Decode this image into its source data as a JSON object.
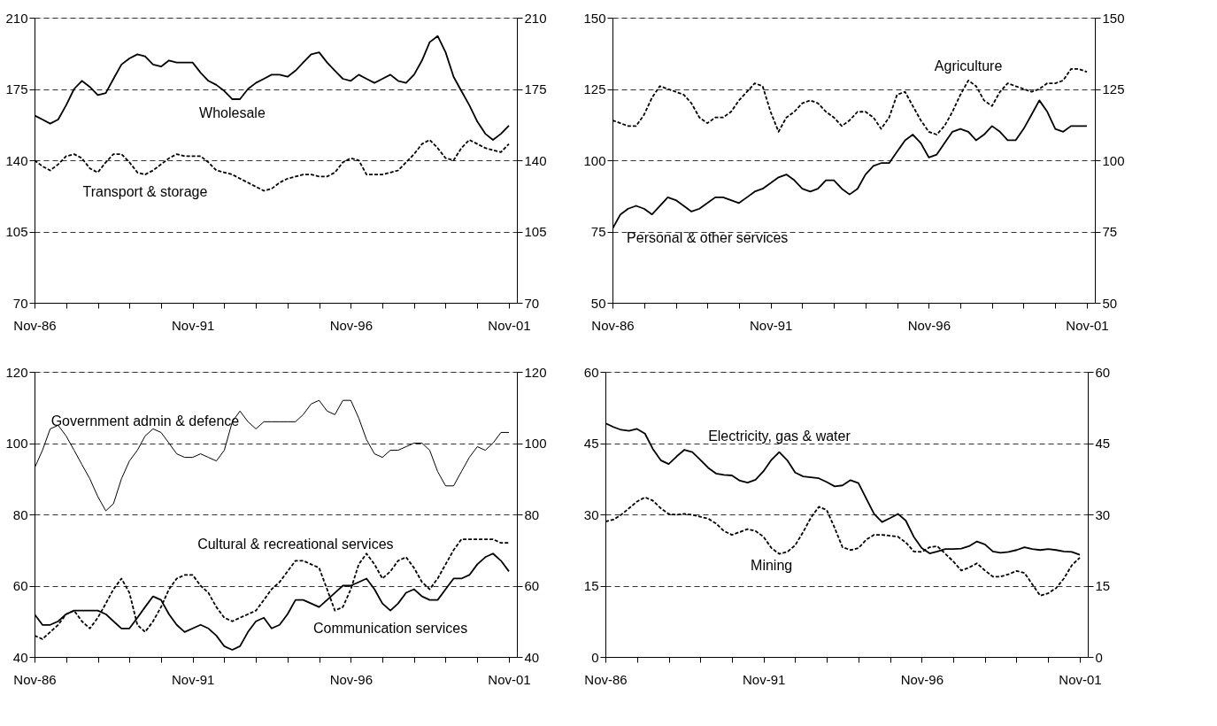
{
  "chart_data": [
    {
      "type": "line",
      "x": [
        "1986-11",
        "1987-02",
        "1987-05",
        "1987-08",
        "1987-11",
        "1988-02",
        "1988-05",
        "1988-08",
        "1988-11",
        "1989-02",
        "1989-05",
        "1989-08",
        "1989-11",
        "1990-02",
        "1990-05",
        "1990-08",
        "1990-11",
        "1991-02",
        "1991-05",
        "1991-08",
        "1991-11",
        "1992-02",
        "1992-05",
        "1992-08",
        "1992-11",
        "1993-02",
        "1993-05",
        "1993-08",
        "1993-11",
        "1994-02",
        "1994-05",
        "1994-08",
        "1994-11",
        "1995-02",
        "1995-05",
        "1995-08",
        "1995-11",
        "1996-02",
        "1996-05",
        "1996-08",
        "1996-11",
        "1997-02",
        "1997-05",
        "1997-08",
        "1997-11",
        "1998-02",
        "1998-05",
        "1998-08",
        "1998-11",
        "1999-02",
        "1999-05",
        "1999-08",
        "1999-11",
        "2000-02",
        "2000-05",
        "2000-08",
        "2000-11",
        "2001-02",
        "2001-05",
        "2001-08",
        "2001-11"
      ],
      "xlim": [
        "1986-11",
        "2002-02"
      ],
      "xticks": [
        {
          "value": "1986-11",
          "label": "Nov-86"
        },
        {
          "value": "1987-11",
          "label": null
        },
        {
          "value": "1988-11",
          "label": null
        },
        {
          "value": "1989-11",
          "label": null
        },
        {
          "value": "1990-11",
          "label": null
        },
        {
          "value": "1991-11",
          "label": "Nov-91"
        },
        {
          "value": "1992-11",
          "label": null
        },
        {
          "value": "1993-11",
          "label": null
        },
        {
          "value": "1994-11",
          "label": null
        },
        {
          "value": "1995-11",
          "label": null
        },
        {
          "value": "1996-11",
          "label": "Nov-96"
        },
        {
          "value": "1997-11",
          "label": null
        },
        {
          "value": "1998-11",
          "label": null
        },
        {
          "value": "1999-11",
          "label": null
        },
        {
          "value": "2000-11",
          "label": null
        },
        {
          "value": "2001-11",
          "label": "Nov-01"
        }
      ],
      "ylim": [
        70,
        210
      ],
      "yticks": [
        70,
        105,
        140,
        175,
        210
      ],
      "y2lim": [
        70,
        210
      ],
      "y2ticks": [
        70,
        105,
        140,
        175,
        210
      ],
      "grid": "y",
      "series": [
        {
          "name": "Wholesale",
          "color": "#000000",
          "line_style": "solid",
          "values": [
            162,
            160,
            158,
            160,
            167,
            175,
            179,
            176,
            172,
            173,
            180,
            187,
            190,
            192,
            191,
            187,
            186,
            189,
            188,
            188,
            188,
            183,
            179,
            177,
            174,
            170,
            170,
            175,
            178,
            180,
            182,
            182,
            181,
            184,
            188,
            192,
            193,
            188,
            184,
            180,
            179,
            182,
            180,
            178,
            180,
            182,
            179,
            178,
            182,
            189,
            198,
            201,
            193,
            181,
            174,
            167,
            159,
            153,
            150,
            153,
            157
          ]
        },
        {
          "name": "Transport & storage",
          "color": "#000000",
          "line_style": "dashed",
          "values": [
            140,
            137,
            135,
            138,
            142,
            143,
            141,
            136,
            134,
            139,
            143,
            143,
            139,
            134,
            133,
            135,
            138,
            141,
            143,
            142,
            142,
            142,
            139,
            135,
            134,
            133,
            131,
            129,
            127,
            125,
            126,
            129,
            131,
            132,
            133,
            133,
            132,
            132,
            134,
            139,
            141,
            140,
            133,
            133,
            133,
            134,
            135,
            139,
            143,
            148,
            150,
            146,
            141,
            140,
            146,
            150,
            148,
            146,
            145,
            144,
            148
          ]
        }
      ]
    },
    {
      "type": "line",
      "x": [
        "1986-11",
        "1987-02",
        "1987-05",
        "1987-08",
        "1987-11",
        "1988-02",
        "1988-05",
        "1988-08",
        "1988-11",
        "1989-02",
        "1989-05",
        "1989-08",
        "1989-11",
        "1990-02",
        "1990-05",
        "1990-08",
        "1990-11",
        "1991-02",
        "1991-05",
        "1991-08",
        "1991-11",
        "1992-02",
        "1992-05",
        "1992-08",
        "1992-11",
        "1993-02",
        "1993-05",
        "1993-08",
        "1993-11",
        "1994-02",
        "1994-05",
        "1994-08",
        "1994-11",
        "1995-02",
        "1995-05",
        "1995-08",
        "1995-11",
        "1996-02",
        "1996-05",
        "1996-08",
        "1996-11",
        "1997-02",
        "1997-05",
        "1997-08",
        "1997-11",
        "1998-02",
        "1998-05",
        "1998-08",
        "1998-11",
        "1999-02",
        "1999-05",
        "1999-08",
        "1999-11",
        "2000-02",
        "2000-05",
        "2000-08",
        "2000-11",
        "2001-02",
        "2001-05",
        "2001-08",
        "2001-11"
      ],
      "xlim": [
        "1986-11",
        "2002-02"
      ],
      "xticks": [
        {
          "value": "1986-11",
          "label": "Nov-86"
        },
        {
          "value": "1987-11",
          "label": null
        },
        {
          "value": "1988-11",
          "label": null
        },
        {
          "value": "1989-11",
          "label": null
        },
        {
          "value": "1990-11",
          "label": null
        },
        {
          "value": "1991-11",
          "label": "Nov-91"
        },
        {
          "value": "1992-11",
          "label": null
        },
        {
          "value": "1993-11",
          "label": null
        },
        {
          "value": "1994-11",
          "label": null
        },
        {
          "value": "1995-11",
          "label": null
        },
        {
          "value": "1996-11",
          "label": "Nov-96"
        },
        {
          "value": "1997-11",
          "label": null
        },
        {
          "value": "1998-11",
          "label": null
        },
        {
          "value": "1999-11",
          "label": null
        },
        {
          "value": "2000-11",
          "label": null
        },
        {
          "value": "2001-11",
          "label": "Nov-01"
        }
      ],
      "ylim": [
        50,
        150
      ],
      "yticks": [
        50,
        75,
        100,
        125,
        150
      ],
      "y2lim": [
        50,
        150
      ],
      "y2ticks": [
        50,
        75,
        100,
        125,
        150
      ],
      "grid": "y",
      "series": [
        {
          "name": "Agriculture",
          "color": "#000000",
          "line_style": "dashed",
          "values": [
            114,
            113,
            112,
            112,
            116,
            122,
            126,
            125,
            124,
            123,
            120,
            115,
            113,
            115,
            115,
            117,
            121,
            124,
            127,
            126,
            117,
            110,
            115,
            117,
            120,
            121,
            120,
            117,
            115,
            112,
            114,
            117,
            117,
            115,
            111,
            115,
            123,
            124,
            119,
            114,
            110,
            109,
            112,
            117,
            123,
            128,
            126,
            121,
            119,
            124,
            127,
            126,
            125,
            124,
            125,
            127,
            127,
            128,
            132,
            132,
            131
          ]
        },
        {
          "name": "Personal & other services",
          "color": "#000000",
          "line_style": "solid",
          "values": [
            76,
            81,
            83,
            84,
            83,
            81,
            84,
            87,
            86,
            84,
            82,
            83,
            85,
            87,
            87,
            86,
            85,
            87,
            89,
            90,
            92,
            94,
            95,
            93,
            90,
            89,
            90,
            93,
            93,
            90,
            88,
            90,
            95,
            98,
            99,
            99,
            103,
            107,
            109,
            106,
            101,
            102,
            106,
            110,
            111,
            110,
            107,
            109,
            112,
            110,
            107,
            107,
            111,
            116,
            121,
            117,
            111,
            110,
            112,
            112,
            112
          ]
        }
      ]
    },
    {
      "type": "line",
      "x": [
        "1986-11",
        "1987-02",
        "1987-05",
        "1987-08",
        "1987-11",
        "1988-02",
        "1988-05",
        "1988-08",
        "1988-11",
        "1989-02",
        "1989-05",
        "1989-08",
        "1989-11",
        "1990-02",
        "1990-05",
        "1990-08",
        "1990-11",
        "1991-02",
        "1991-05",
        "1991-08",
        "1991-11",
        "1992-02",
        "1992-05",
        "1992-08",
        "1992-11",
        "1993-02",
        "1993-05",
        "1993-08",
        "1993-11",
        "1994-02",
        "1994-05",
        "1994-08",
        "1994-11",
        "1995-02",
        "1995-05",
        "1995-08",
        "1995-11",
        "1996-02",
        "1996-05",
        "1996-08",
        "1996-11",
        "1997-02",
        "1997-05",
        "1997-08",
        "1997-11",
        "1998-02",
        "1998-05",
        "1998-08",
        "1998-11",
        "1999-02",
        "1999-05",
        "1999-08",
        "1999-11",
        "2000-02",
        "2000-05",
        "2000-08",
        "2000-11",
        "2001-02",
        "2001-05",
        "2001-08",
        "2001-11"
      ],
      "xlim": [
        "1986-11",
        "2002-02"
      ],
      "xticks": [
        {
          "value": "1986-11",
          "label": "Nov-86"
        },
        {
          "value": "1987-11",
          "label": null
        },
        {
          "value": "1988-11",
          "label": null
        },
        {
          "value": "1989-11",
          "label": null
        },
        {
          "value": "1990-11",
          "label": null
        },
        {
          "value": "1991-11",
          "label": "Nov-91"
        },
        {
          "value": "1992-11",
          "label": null
        },
        {
          "value": "1993-11",
          "label": null
        },
        {
          "value": "1994-11",
          "label": null
        },
        {
          "value": "1995-11",
          "label": null
        },
        {
          "value": "1996-11",
          "label": "Nov-96"
        },
        {
          "value": "1997-11",
          "label": null
        },
        {
          "value": "1998-11",
          "label": null
        },
        {
          "value": "1999-11",
          "label": null
        },
        {
          "value": "2000-11",
          "label": null
        },
        {
          "value": "2001-11",
          "label": "Nov-01"
        }
      ],
      "ylim": [
        40,
        120
      ],
      "yticks": [
        40,
        60,
        80,
        100,
        120
      ],
      "y2lim": [
        40,
        120
      ],
      "y2ticks": [
        40,
        60,
        80,
        100,
        120
      ],
      "grid": "y",
      "series": [
        {
          "name": "Government admin & defence",
          "color": "#000000",
          "line_style": "solid",
          "values": [
            93,
            98,
            104,
            105,
            102,
            98,
            94,
            90,
            85,
            81,
            83,
            90,
            95,
            98,
            102,
            104,
            103,
            100,
            97,
            96,
            96,
            97,
            96,
            95,
            98,
            106,
            109,
            106,
            104,
            106,
            106,
            106,
            106,
            106,
            108,
            111,
            112,
            109,
            108,
            112,
            112,
            107,
            101,
            97,
            96,
            98,
            98,
            99,
            100,
            100,
            98,
            92,
            88,
            88,
            92,
            96,
            99,
            98,
            100,
            103,
            103
          ]
        },
        {
          "name": "Cultural & recreational services",
          "color": "#000000",
          "line_style": "dashed",
          "values": [
            46,
            45,
            47,
            49,
            52,
            53,
            50,
            48,
            51,
            55,
            59,
            62,
            58,
            49,
            47,
            50,
            54,
            59,
            62,
            63,
            63,
            60,
            58,
            54,
            51,
            50,
            51,
            52,
            53,
            56,
            59,
            61,
            64,
            67,
            67,
            66,
            65,
            59,
            53,
            54,
            59,
            66,
            69,
            66,
            62,
            64,
            67,
            68,
            65,
            61,
            59,
            62,
            66,
            70,
            73,
            73,
            73,
            73,
            73,
            72,
            72
          ]
        },
        {
          "name": "Communication services",
          "color": "#000000",
          "line_style": "solid",
          "values": [
            52,
            49,
            49,
            50,
            52,
            53,
            53,
            53,
            53,
            52,
            50,
            48,
            48,
            51,
            54,
            57,
            56,
            52,
            49,
            47,
            48,
            49,
            48,
            46,
            43,
            42,
            43,
            47,
            50,
            51,
            48,
            49,
            52,
            56,
            56,
            55,
            54,
            56,
            58,
            60,
            60,
            61,
            62,
            59,
            55,
            53,
            55,
            58,
            59,
            57,
            56,
            56,
            59,
            62,
            62,
            63,
            66,
            68,
            69,
            67,
            64
          ]
        }
      ]
    },
    {
      "type": "line",
      "x": [
        "1986-11",
        "1987-02",
        "1987-05",
        "1987-08",
        "1987-11",
        "1988-02",
        "1988-05",
        "1988-08",
        "1988-11",
        "1989-02",
        "1989-05",
        "1989-08",
        "1989-11",
        "1990-02",
        "1990-05",
        "1990-08",
        "1990-11",
        "1991-02",
        "1991-05",
        "1991-08",
        "1991-11",
        "1992-02",
        "1992-05",
        "1992-08",
        "1992-11",
        "1993-02",
        "1993-05",
        "1993-08",
        "1993-11",
        "1994-02",
        "1994-05",
        "1994-08",
        "1994-11",
        "1995-02",
        "1995-05",
        "1995-08",
        "1995-11",
        "1996-02",
        "1996-05",
        "1996-08",
        "1996-11",
        "1997-02",
        "1997-05",
        "1997-08",
        "1997-11",
        "1998-02",
        "1998-05",
        "1998-08",
        "1998-11",
        "1999-02",
        "1999-05",
        "1999-08",
        "1999-11",
        "2000-02",
        "2000-05",
        "2000-08",
        "2000-11",
        "2001-02",
        "2001-05",
        "2001-08",
        "2001-11"
      ],
      "xlim": [
        "1986-11",
        "2002-02"
      ],
      "xticks": [
        {
          "value": "1986-11",
          "label": "Nov-86"
        },
        {
          "value": "1987-11",
          "label": null
        },
        {
          "value": "1988-11",
          "label": null
        },
        {
          "value": "1989-11",
          "label": null
        },
        {
          "value": "1990-11",
          "label": null
        },
        {
          "value": "1991-11",
          "label": "Nov-91"
        },
        {
          "value": "1992-11",
          "label": null
        },
        {
          "value": "1993-11",
          "label": null
        },
        {
          "value": "1994-11",
          "label": null
        },
        {
          "value": "1995-11",
          "label": null
        },
        {
          "value": "1996-11",
          "label": "Nov-96"
        },
        {
          "value": "1997-11",
          "label": null
        },
        {
          "value": "1998-11",
          "label": null
        },
        {
          "value": "1999-11",
          "label": null
        },
        {
          "value": "2000-11",
          "label": null
        },
        {
          "value": "2001-11",
          "label": "Nov-01"
        }
      ],
      "ylim": [
        0,
        60
      ],
      "yticks": [
        0,
        15,
        30,
        45,
        60
      ],
      "y2lim": [
        0,
        60
      ],
      "y2ticks": [
        0,
        15,
        30,
        45,
        60
      ],
      "grid": "y",
      "series": [
        {
          "name": "Electricity, gas & water",
          "color": "#000000",
          "line_style": "solid",
          "values": [
            49.2,
            48.4,
            47.8,
            47.6,
            48.0,
            47.0,
            43.8,
            41.4,
            40.6,
            42.2,
            43.6,
            43.1,
            41.5,
            39.8,
            38.6,
            38.3,
            38.2,
            37.1,
            36.7,
            37.3,
            39.1,
            41.5,
            43.1,
            41.4,
            38.8,
            38.0,
            37.8,
            37.6,
            36.8,
            35.9,
            36.1,
            37.2,
            36.6,
            33.3,
            30.1,
            28.4,
            29.2,
            30.1,
            28.7,
            25.3,
            22.9,
            21.8,
            22.2,
            22.7,
            22.7,
            22.8,
            23.3,
            24.3,
            23.7,
            22.2,
            21.9,
            22.1,
            22.5,
            23.1,
            22.7,
            22.5,
            22.7,
            22.5,
            22.2,
            22.1,
            21.5
          ]
        },
        {
          "name": "Mining",
          "color": "#000000",
          "line_style": "dashed",
          "values": [
            28.5,
            28.9,
            29.9,
            31.3,
            32.7,
            33.6,
            32.9,
            31.3,
            30.1,
            29.9,
            30.1,
            29.9,
            29.5,
            29.1,
            28.1,
            26.5,
            25.7,
            26.3,
            26.9,
            26.5,
            25.3,
            22.9,
            21.7,
            22.1,
            23.5,
            26.3,
            29.3,
            31.6,
            30.9,
            27.1,
            23.1,
            22.5,
            22.9,
            24.7,
            25.7,
            25.7,
            25.5,
            25.3,
            24.1,
            22.2,
            22.1,
            23.1,
            23.3,
            21.7,
            20.1,
            18.2,
            18.8,
            19.7,
            18.2,
            16.9,
            16.9,
            17.4,
            18.1,
            17.7,
            15.3,
            12.9,
            13.4,
            14.5,
            16.5,
            19.3,
            20.9
          ]
        }
      ]
    }
  ]
}
